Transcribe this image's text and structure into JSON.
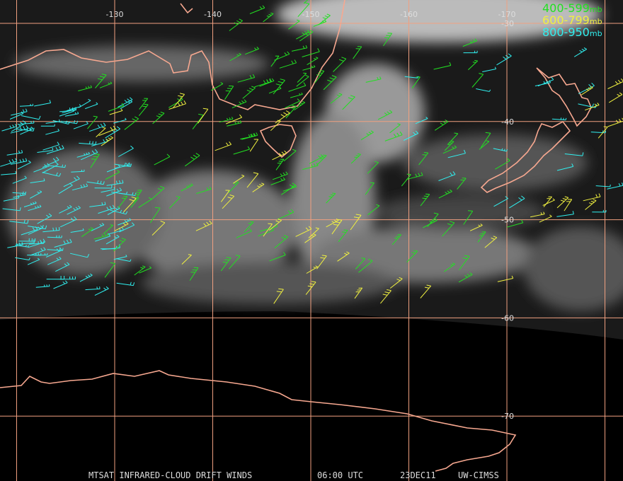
{
  "map": {
    "longitude_labels": [
      -130,
      -140,
      -150,
      -160,
      -170
    ],
    "latitude_labels": [
      -30,
      -40,
      -50,
      -60,
      -70
    ],
    "legend": [
      {
        "range": "400-599",
        "unit": "mb",
        "color": "#22e022"
      },
      {
        "range": "600-799",
        "unit": "mb",
        "color": "#f0f040"
      },
      {
        "range": "800-950",
        "unit": "mb",
        "color": "#30f0f0"
      }
    ],
    "footer": {
      "product": "MTSAT INFRARED-CLOUD DRIFT WINDS",
      "time": "06:00 UTC",
      "date": "23DEC11",
      "source": "UW-CIMSS"
    }
  }
}
